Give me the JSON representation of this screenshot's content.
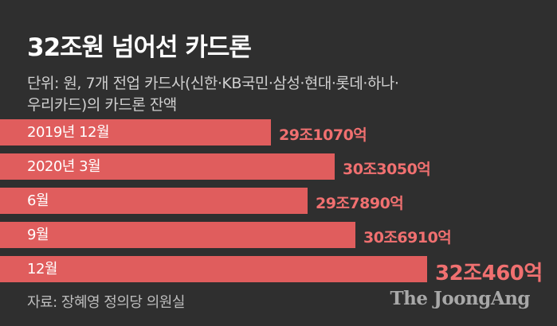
{
  "header": {
    "title": "32조원 넘어선 카드론",
    "subtitle_line1": "단위: 원, 7개 전업 카드사(신한·KB국민·삼성·현대·롯데·하나·",
    "subtitle_line2": "우리카드)의 카드론 잔액"
  },
  "chart_data": {
    "type": "bar",
    "orientation": "horizontal",
    "title": "32조원 넘어선 카드론",
    "unit": "원",
    "categories": [
      "2019년 12월",
      "2020년 3월",
      "6월",
      "9월",
      "12월"
    ],
    "values": [
      291070,
      303050,
      297890,
      306910,
      320460
    ],
    "value_unit": "억",
    "value_labels": [
      "29조1070억",
      "30조3050억",
      "29조7890억",
      "30조6910억",
      "32조460억"
    ],
    "colors": {
      "bar": "#e05d5d",
      "value_text": "#f07070",
      "background": "#2f2f2f"
    }
  },
  "footer": {
    "source": "자료: 장혜영 정의당 의원실",
    "brand": "The JoongAng"
  }
}
